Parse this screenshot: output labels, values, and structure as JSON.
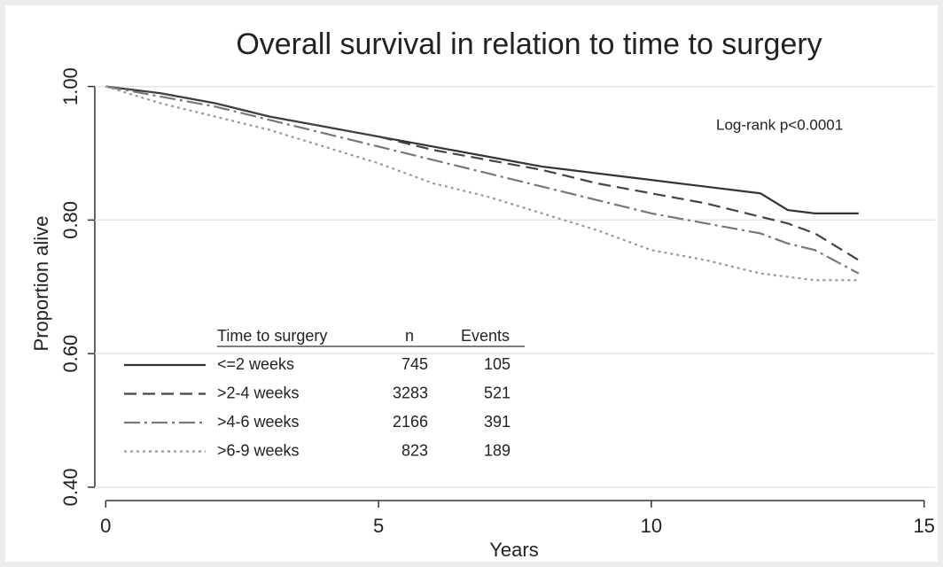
{
  "chart_data": {
    "type": "line",
    "title": "Overall survival in relation to time to surgery",
    "x_label": "Years",
    "y_label": "Proportion alive",
    "annotation": "Log-rank p<0.0001",
    "xlim": [
      -0.2,
      15.2
    ],
    "xticks": [
      0,
      5,
      10,
      15
    ],
    "ylim": [
      0.38,
      1.03
    ],
    "yticks": [
      {
        "value": 0.4,
        "label": "0.40"
      },
      {
        "value": 0.6,
        "label": "0.60"
      },
      {
        "value": 0.8,
        "label": "0.80"
      },
      {
        "value": 1,
        "label": "1.00"
      }
    ],
    "grid": true,
    "legend_headers": [
      "Time to surgery",
      "n",
      "Events"
    ],
    "x": [
      0,
      1,
      2,
      3,
      4,
      5,
      6,
      7,
      8,
      9,
      10,
      11,
      12,
      12.5,
      13,
      13.8
    ],
    "series": [
      {
        "name": "<=2 weeks",
        "n": 745,
        "events": 105,
        "color": "#333333",
        "dash": "none",
        "values": [
          1,
          0.99,
          0.975,
          0.955,
          0.94,
          0.925,
          0.91,
          0.895,
          0.88,
          0.87,
          0.86,
          0.85,
          0.84,
          0.815,
          0.81,
          0.81
        ]
      },
      {
        "name": ">2-4 weeks",
        "n": 3283,
        "events": 521,
        "color": "#444444",
        "dash": "14,7",
        "values": [
          1,
          0.99,
          0.975,
          0.955,
          0.94,
          0.925,
          0.905,
          0.89,
          0.875,
          0.855,
          0.84,
          0.825,
          0.805,
          0.795,
          0.78,
          0.74
        ]
      },
      {
        "name": ">4-6 weeks",
        "n": 2166,
        "events": 391,
        "color": "#777777",
        "dash": "18,5,3,5",
        "values": [
          1,
          0.985,
          0.97,
          0.95,
          0.93,
          0.91,
          0.89,
          0.87,
          0.85,
          0.83,
          0.81,
          0.795,
          0.78,
          0.765,
          0.755,
          0.72
        ]
      },
      {
        "name": ">6-9 weeks",
        "n": 823,
        "events": 189,
        "color": "#999999",
        "dash": "3,4",
        "values": [
          1,
          0.975,
          0.955,
          0.935,
          0.91,
          0.885,
          0.855,
          0.835,
          0.81,
          0.785,
          0.755,
          0.74,
          0.72,
          0.715,
          0.71,
          0.71
        ]
      }
    ]
  }
}
